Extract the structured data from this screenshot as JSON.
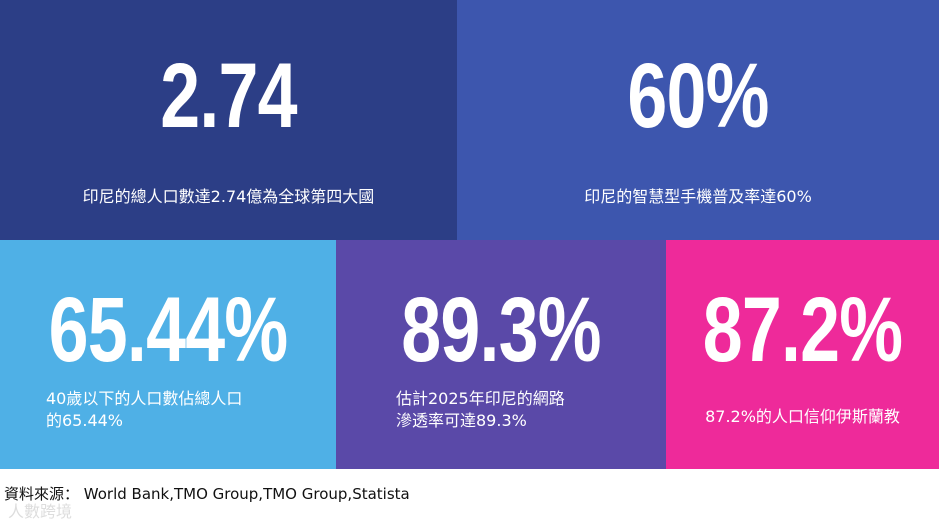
{
  "tiles": [
    {
      "value": "2.74",
      "caption": "印尼的總人口數達2.74億為全球第四大國",
      "color": "#2c3e86"
    },
    {
      "value": "60%",
      "caption": "印尼的智慧型手機普及率達60%",
      "color": "#3d56ae"
    },
    {
      "value": "65.44%",
      "caption_line1": "40歲以下的人口數佔總人口",
      "caption_line2": "的65.44%",
      "color": "#4fb0e6"
    },
    {
      "value": "89.3%",
      "caption_line1": "估計2025年印尼的網路",
      "caption_line2": "滲透率可達89.3%",
      "color": "#5a49a8"
    },
    {
      "value": "87.2%",
      "caption": "87.2%的人口信仰伊斯蘭教",
      "color": "#ee2a9a"
    }
  ],
  "source": "資料來源： World Bank,TMO Group,TMO Group,Statista",
  "watermark": "人數跨境"
}
